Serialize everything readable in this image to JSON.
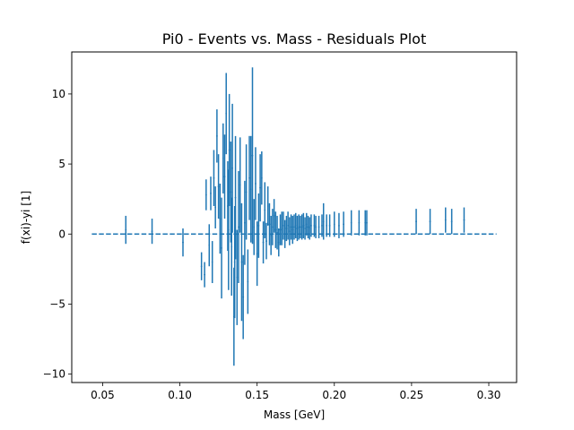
{
  "chart_data": {
    "type": "scatter",
    "title": "Pi0 - Events vs. Mass - Residuals Plot",
    "xlabel": "Mass [GeV]",
    "ylabel": "f(xi)-yi [1]",
    "xlim": [
      0.03,
      0.318
    ],
    "ylim": [
      -10.6,
      13.0
    ],
    "xticks": [
      0.05,
      0.1,
      0.15,
      0.2,
      0.25,
      0.3
    ],
    "xtick_labels": [
      "0.05",
      "0.10",
      "0.15",
      "0.20",
      "0.25",
      "0.30"
    ],
    "yticks": [
      -10,
      -5,
      0,
      5,
      10
    ],
    "ytick_labels": [
      "−10",
      "−5",
      "0",
      "5",
      "10"
    ],
    "grid": false,
    "colors": {
      "series": "#1f77b4"
    },
    "zero_line": {
      "x_range": [
        0.043,
        0.305
      ],
      "y": 0,
      "style": "dashed"
    },
    "series": [
      {
        "points": [
          {
            "x": 0.065,
            "y": 0.3,
            "err": 1.0
          },
          {
            "x": 0.082,
            "y": 0.2,
            "err": 0.9
          },
          {
            "x": 0.102,
            "y": -0.6,
            "err": 1.0
          },
          {
            "x": 0.114,
            "y": -2.3,
            "err": 1.0
          },
          {
            "x": 0.116,
            "y": -2.9,
            "err": 0.9
          },
          {
            "x": 0.117,
            "y": 2.8,
            "err": 1.1
          },
          {
            "x": 0.119,
            "y": -0.8,
            "err": 1.5
          },
          {
            "x": 0.12,
            "y": 2.9,
            "err": 1.2
          },
          {
            "x": 0.121,
            "y": -2.0,
            "err": 1.5
          },
          {
            "x": 0.122,
            "y": 4.0,
            "err": 2.0
          },
          {
            "x": 0.123,
            "y": 1.9,
            "err": 1.5
          },
          {
            "x": 0.124,
            "y": 7.0,
            "err": 1.9
          },
          {
            "x": 0.125,
            "y": 3.4,
            "err": 2.3
          },
          {
            "x": 0.126,
            "y": 1.1,
            "err": 2.5
          },
          {
            "x": 0.127,
            "y": -1.0,
            "err": 3.6
          },
          {
            "x": 0.128,
            "y": 5.4,
            "err": 2.5
          },
          {
            "x": 0.129,
            "y": 4.1,
            "err": 3.0
          },
          {
            "x": 0.13,
            "y": 8.6,
            "err": 2.9
          },
          {
            "x": 0.131,
            "y": 2.0,
            "err": 3.2
          },
          {
            "x": 0.1315,
            "y": 0.3,
            "err": 4.3
          },
          {
            "x": 0.132,
            "y": 6.0,
            "err": 4.0
          },
          {
            "x": 0.133,
            "y": 3.0,
            "err": 3.6
          },
          {
            "x": 0.1335,
            "y": -0.9,
            "err": 3.5
          },
          {
            "x": 0.134,
            "y": 4.7,
            "err": 4.6
          },
          {
            "x": 0.135,
            "y": -5.9,
            "err": 3.5
          },
          {
            "x": 0.1355,
            "y": -2.0,
            "err": 4.0
          },
          {
            "x": 0.136,
            "y": 2.6,
            "err": 4.4
          },
          {
            "x": 0.137,
            "y": -3.1,
            "err": 3.4
          },
          {
            "x": 0.138,
            "y": 0.5,
            "err": 4.0
          },
          {
            "x": 0.139,
            "y": 3.5,
            "err": 3.4
          },
          {
            "x": 0.14,
            "y": -2.0,
            "err": 4.2
          },
          {
            "x": 0.141,
            "y": -4.5,
            "err": 3.0
          },
          {
            "x": 0.142,
            "y": 0.8,
            "err": 3.0
          },
          {
            "x": 0.143,
            "y": 3.0,
            "err": 3.4
          },
          {
            "x": 0.144,
            "y": -3.4,
            "err": 2.3
          },
          {
            "x": 0.145,
            "y": 4.0,
            "err": 3.0
          },
          {
            "x": 0.146,
            "y": 3.2,
            "err": 3.8
          },
          {
            "x": 0.147,
            "y": 5.6,
            "err": 6.3
          },
          {
            "x": 0.148,
            "y": 0.5,
            "err": 2.0
          },
          {
            "x": 0.149,
            "y": 3.6,
            "err": 2.6
          },
          {
            "x": 0.15,
            "y": -1.4,
            "err": 2.3
          },
          {
            "x": 0.151,
            "y": 0.6,
            "err": 2.3
          },
          {
            "x": 0.152,
            "y": 3.3,
            "err": 2.4
          },
          {
            "x": 0.153,
            "y": 4.0,
            "err": 1.9
          },
          {
            "x": 0.154,
            "y": -0.6,
            "err": 1.5
          },
          {
            "x": 0.155,
            "y": 1.7,
            "err": 2.0
          },
          {
            "x": 0.156,
            "y": -0.5,
            "err": 1.3
          },
          {
            "x": 0.157,
            "y": 2.0,
            "err": 1.4
          },
          {
            "x": 0.158,
            "y": 0.7,
            "err": 1.5
          },
          {
            "x": 0.159,
            "y": -0.1,
            "err": 1.4
          },
          {
            "x": 0.16,
            "y": 0.5,
            "err": 1.3
          },
          {
            "x": 0.161,
            "y": 1.3,
            "err": 1.2
          },
          {
            "x": 0.162,
            "y": 0.3,
            "err": 1.3
          },
          {
            "x": 0.163,
            "y": 0.1,
            "err": 1.2
          },
          {
            "x": 0.164,
            "y": -0.6,
            "err": 1.0
          },
          {
            "x": 0.165,
            "y": 0.3,
            "err": 1.1
          },
          {
            "x": 0.166,
            "y": 0.4,
            "err": 1.2
          },
          {
            "x": 0.167,
            "y": 0.6,
            "err": 1.0
          },
          {
            "x": 0.168,
            "y": 0.0,
            "err": 1.0
          },
          {
            "x": 0.169,
            "y": 0.4,
            "err": 0.9
          },
          {
            "x": 0.17,
            "y": 0.6,
            "err": 1.0
          },
          {
            "x": 0.171,
            "y": 0.2,
            "err": 1.0
          },
          {
            "x": 0.172,
            "y": 0.5,
            "err": 0.9
          },
          {
            "x": 0.173,
            "y": 0.3,
            "err": 1.0
          },
          {
            "x": 0.174,
            "y": 0.5,
            "err": 0.9
          },
          {
            "x": 0.175,
            "y": 0.6,
            "err": 0.9
          },
          {
            "x": 0.176,
            "y": 0.4,
            "err": 0.9
          },
          {
            "x": 0.177,
            "y": 0.5,
            "err": 0.9
          },
          {
            "x": 0.178,
            "y": 0.5,
            "err": 0.8
          },
          {
            "x": 0.179,
            "y": 0.5,
            "err": 0.9
          },
          {
            "x": 0.18,
            "y": 0.6,
            "err": 0.9
          },
          {
            "x": 0.181,
            "y": 0.4,
            "err": 0.8
          },
          {
            "x": 0.182,
            "y": 0.7,
            "err": 0.8
          },
          {
            "x": 0.183,
            "y": 0.5,
            "err": 0.8
          },
          {
            "x": 0.184,
            "y": 0.4,
            "err": 0.8
          },
          {
            "x": 0.185,
            "y": 0.6,
            "err": 0.8
          },
          {
            "x": 0.187,
            "y": 0.6,
            "err": 0.8
          },
          {
            "x": 0.188,
            "y": 0.5,
            "err": 0.8
          },
          {
            "x": 0.19,
            "y": 0.5,
            "err": 0.8
          },
          {
            "x": 0.192,
            "y": 0.6,
            "err": 0.8
          },
          {
            "x": 0.193,
            "y": 0.9,
            "err": 1.3
          },
          {
            "x": 0.195,
            "y": 0.6,
            "err": 0.8
          },
          {
            "x": 0.197,
            "y": 0.6,
            "err": 0.8
          },
          {
            "x": 0.2,
            "y": 0.7,
            "err": 0.9
          },
          {
            "x": 0.203,
            "y": 0.6,
            "err": 0.9
          },
          {
            "x": 0.206,
            "y": 0.7,
            "err": 0.9
          },
          {
            "x": 0.211,
            "y": 0.8,
            "err": 0.9
          },
          {
            "x": 0.216,
            "y": 0.8,
            "err": 0.9
          },
          {
            "x": 0.22,
            "y": 0.8,
            "err": 0.9
          },
          {
            "x": 0.221,
            "y": 0.8,
            "err": 0.9
          },
          {
            "x": 0.253,
            "y": 0.9,
            "err": 0.9
          },
          {
            "x": 0.262,
            "y": 0.9,
            "err": 0.9
          },
          {
            "x": 0.272,
            "y": 1.0,
            "err": 0.9
          },
          {
            "x": 0.276,
            "y": 0.9,
            "err": 0.9
          },
          {
            "x": 0.284,
            "y": 1.0,
            "err": 0.9
          }
        ]
      }
    ]
  }
}
